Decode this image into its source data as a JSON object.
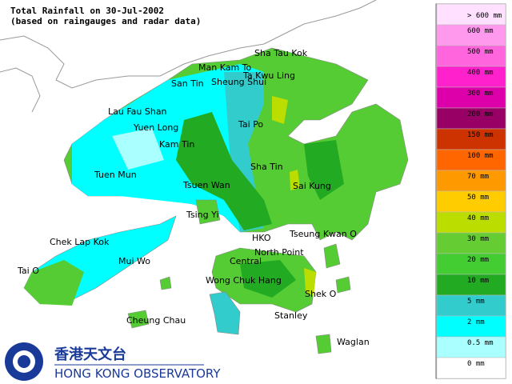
{
  "title": "Total Rainfall on 30-Jul-2002",
  "subtitle": "(based on raingauges and radar data)",
  "places": [
    "Sha Tau Kok",
    "Man Kam To",
    "Ta Kwu Ling",
    "San Tin",
    "Sheung Shui",
    "Lau Fau Shan",
    "Yuen Long",
    "Tai Po",
    "Kam Tin",
    "Sha Tin",
    "Tuen Mun",
    "Tsuen Wan",
    "Sai Kung",
    "Tsing Yi",
    "HKO",
    "Tseung Kwan O",
    "Chek Lap Kok",
    "North Point",
    "Mui Wo",
    "Central",
    "Tai O",
    "Wong Chuk Hang",
    "Shek O",
    "Cheung Chau",
    "Stanley",
    "Waglan"
  ],
  "legend": [
    {
      "label": "> 600 mm",
      "color": "#ffe0ff"
    },
    {
      "label": "600 mm",
      "color": "#ff99ee"
    },
    {
      "label": "500 mm",
      "color": "#ff66dd"
    },
    {
      "label": "400 mm",
      "color": "#ff22cc"
    },
    {
      "label": "300 mm",
      "color": "#dd00aa"
    },
    {
      "label": "200 mm",
      "color": "#990066"
    },
    {
      "label": "150 mm",
      "color": "#cc3300"
    },
    {
      "label": "100 mm",
      "color": "#ff6600"
    },
    {
      "label": "70 mm",
      "color": "#ff9900"
    },
    {
      "label": "50 mm",
      "color": "#ffcc00"
    },
    {
      "label": "40 mm",
      "color": "#bbdd00"
    },
    {
      "label": "30 mm",
      "color": "#66cc33"
    },
    {
      "label": "20 mm",
      "color": "#44cc33"
    },
    {
      "label": "10 mm",
      "color": "#22aa22"
    },
    {
      "label": "5 mm",
      "color": "#33cccc"
    },
    {
      "label": "2 mm",
      "color": "#00ffff"
    },
    {
      "label": "0.5 mm",
      "color": "#aaffff"
    },
    {
      "label": "0 mm",
      "color": "#ffffff"
    }
  ],
  "logo": {
    "chinese": "香港天文台",
    "english": "HONG KONG OBSERVATORY"
  }
}
